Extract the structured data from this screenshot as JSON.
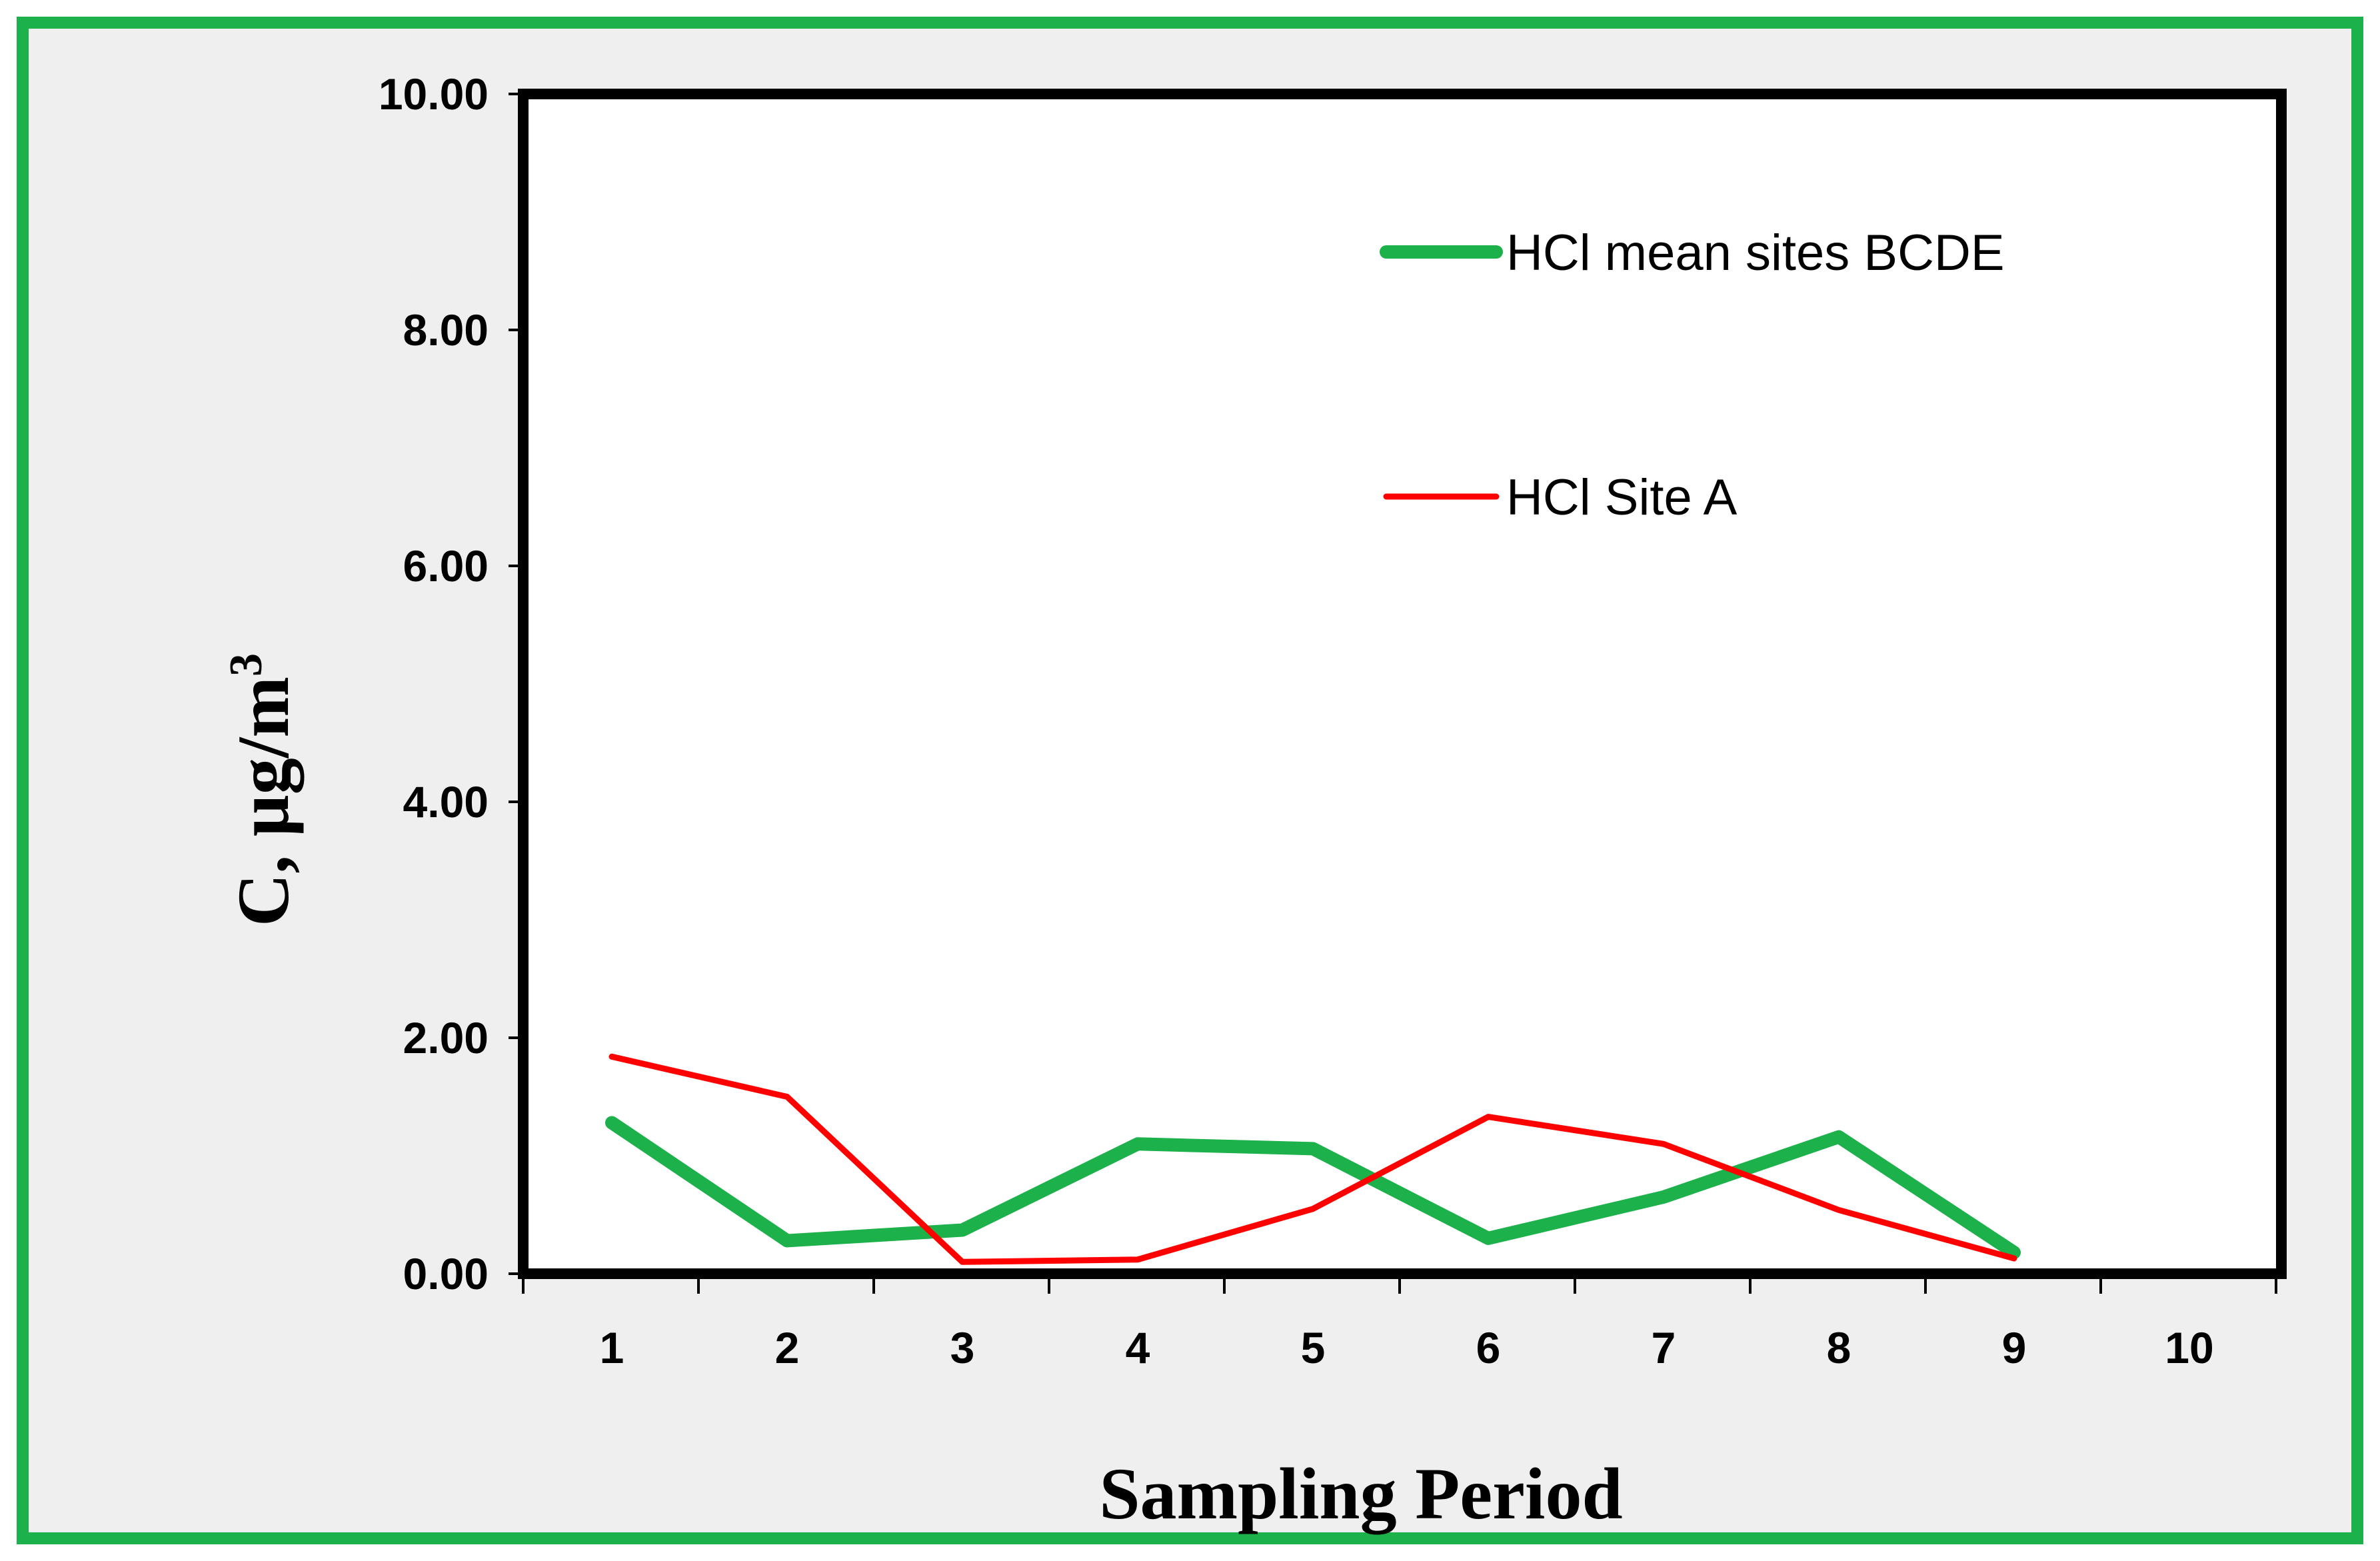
{
  "colors": {
    "frame": "#1db14b",
    "background": "#efefef",
    "plot_background": "#ffffff",
    "axis": "#000000"
  },
  "chart_data": {
    "type": "line",
    "title": "",
    "xlabel": "Sampling Period",
    "ylabel": "C, µg/m",
    "ylabel_superscript": "3",
    "categories": [
      "1",
      "2",
      "3",
      "4",
      "5",
      "6",
      "7",
      "8",
      "9",
      "10"
    ],
    "yticks": [
      "0.00",
      "2.00",
      "4.00",
      "6.00",
      "8.00",
      "10.00"
    ],
    "ylim": [
      0,
      10
    ],
    "grid": false,
    "legend_position": "top-right",
    "series": [
      {
        "name": "HCl mean sites BCDE",
        "color": "#1db14b",
        "values": [
          1.28,
          0.28,
          0.37,
          1.1,
          1.06,
          0.3,
          0.65,
          1.16,
          0.18,
          null
        ]
      },
      {
        "name": "HCl Site A",
        "color": "#ff0000",
        "values": [
          1.84,
          1.5,
          0.1,
          0.12,
          0.55,
          1.33,
          1.1,
          0.54,
          0.13,
          null
        ]
      }
    ]
  }
}
